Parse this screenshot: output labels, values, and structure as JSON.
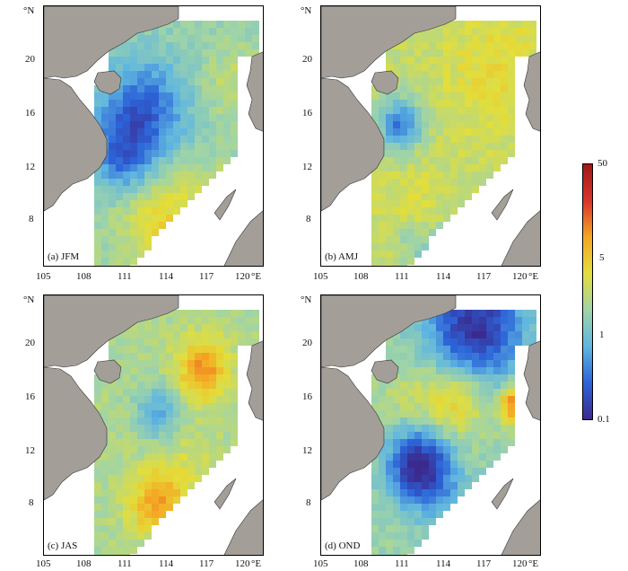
{
  "panels": [
    {
      "label": "(a)  JFM",
      "mode": "jfm"
    },
    {
      "label": "(b)  AMJ",
      "mode": "amj"
    },
    {
      "label": "(c)  JAS",
      "mode": "jas"
    },
    {
      "label": "(d)  OND",
      "mode": "ond"
    }
  ],
  "lat_ticks": [
    "20",
    "16",
    "12",
    "8"
  ],
  "lon_ticks": [
    "105",
    "108",
    "111",
    "114",
    "117",
    "120"
  ],
  "lat_unit": "°N",
  "lon_unit": "°E",
  "colorbar": {
    "ticks": [
      "50",
      "5",
      "1",
      "0.1"
    ],
    "scale": "log",
    "range": [
      0.1,
      50
    ],
    "colors": [
      "#3b2a8e",
      "#2c63d8",
      "#5fb6e0",
      "#9fd4a8",
      "#e3de3a",
      "#f5a623",
      "#d9342b",
      "#a01818"
    ]
  },
  "land_color": "#a39e98"
}
